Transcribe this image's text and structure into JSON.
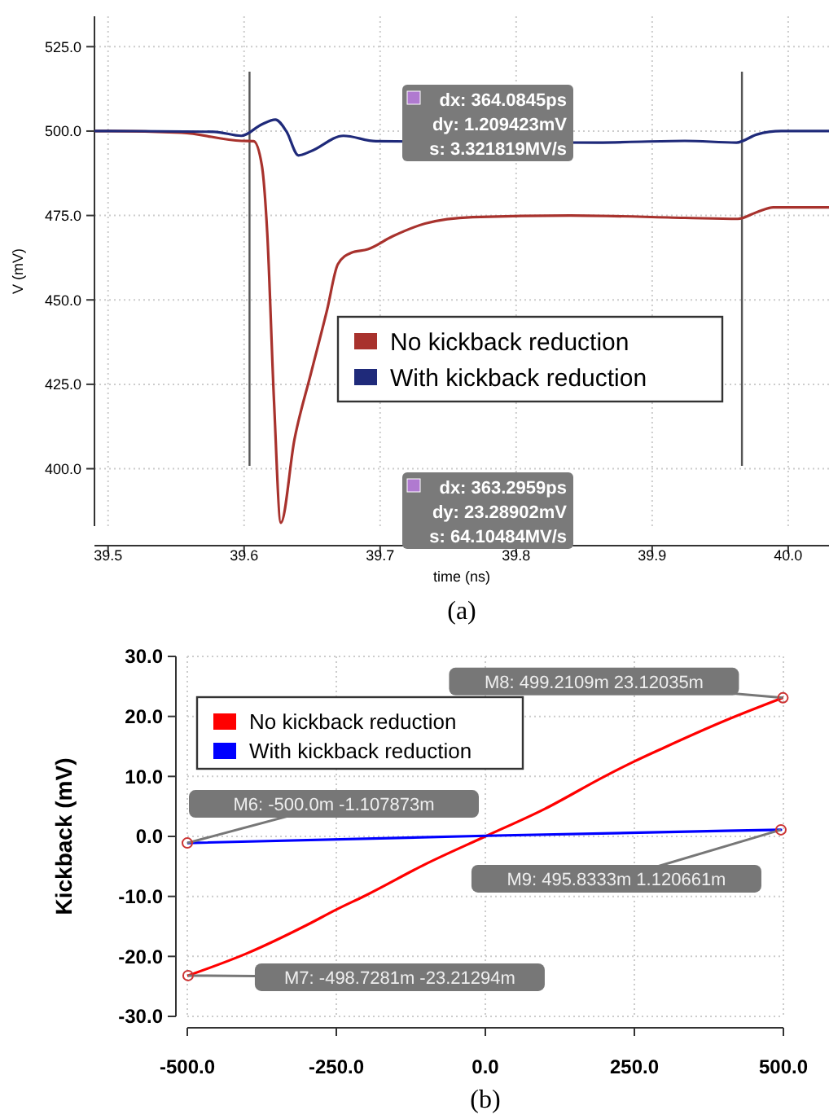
{
  "chart_data": [
    {
      "type": "line",
      "xlabel": "time (ns)",
      "ylabel": "V (mV)",
      "xlim": [
        39.49,
        40.03
      ],
      "ylim": [
        383,
        534
      ],
      "xticks": [
        39.5,
        39.6,
        39.7,
        39.8,
        39.9,
        {
          "value": 40,
          "label": "40.0"
        }
      ],
      "yticks": [
        {
          "value": 400,
          "label": "400.0"
        },
        {
          "value": 425,
          "label": "425.0"
        },
        {
          "value": 450,
          "label": "450.0"
        },
        {
          "value": 475,
          "label": "475.0"
        },
        {
          "value": 500,
          "label": "500.0"
        },
        {
          "value": 525,
          "label": "525.0"
        }
      ],
      "grid": true,
      "legend": "center",
      "series": [
        {
          "name": "No kickback reduction",
          "color": "#a8322d",
          "x": [
            39.49,
            39.5,
            39.554,
            39.598,
            39.607,
            39.613,
            39.617,
            39.622,
            39.627,
            39.637,
            39.649,
            39.661,
            39.669,
            39.679,
            39.691,
            39.709,
            39.733,
            39.768,
            39.84,
            39.924,
            39.963,
            39.977,
            39.989,
            40.03
          ],
          "values": [
            500,
            500,
            499.5,
            497.1,
            497,
            490,
            470,
            420,
            384,
            408.6,
            428,
            447,
            460.6,
            464,
            465,
            468.8,
            472.6,
            474.5,
            475,
            474.3,
            474,
            476,
            477.4,
            477.4
          ]
        },
        {
          "name": "With kickback reduction",
          "color": "#1f2a7a",
          "x": [
            39.49,
            39.5,
            39.578,
            39.598,
            39.613,
            39.623,
            39.631,
            39.64,
            39.649,
            39.673,
            39.697,
            39.86,
            39.924,
            39.962,
            39.977,
            39.995,
            40.03
          ],
          "values": [
            500,
            500,
            499.8,
            498.6,
            502,
            503.4,
            500,
            492.8,
            494,
            498.6,
            497,
            496.6,
            497.1,
            496.6,
            499,
            500,
            500
          ]
        }
      ],
      "ref_lines": [
        {
          "axis": "x",
          "value": 39.604
        },
        {
          "axis": "x",
          "value": 39.966
        }
      ],
      "annotations": [
        "dx: 364.0845ps\ndy: 1.209423mV\ns: 3.321819MV/s",
        "dx: 363.2959ps\ndy: 23.28902mV\ns: 64.10484MV/s",
        "(a)"
      ]
    },
    {
      "type": "line",
      "ylabel": "Kickback (mV)",
      "xlim": [
        -500,
        500
      ],
      "ylim": [
        -30,
        30
      ],
      "xticks": [
        {
          "value": -500,
          "label": "-500.0"
        },
        {
          "value": -250,
          "label": "-250.0"
        },
        {
          "value": 0,
          "label": "0.0"
        },
        {
          "value": 250,
          "label": "250.0"
        },
        {
          "value": 500,
          "label": "500.0"
        }
      ],
      "yticks": [
        {
          "value": -30,
          "label": "-30.0"
        },
        {
          "value": -20,
          "label": "-20.0"
        },
        {
          "value": -10,
          "label": "-10.0"
        },
        {
          "value": 0,
          "label": "0.0"
        },
        {
          "value": 10,
          "label": "10.0"
        },
        {
          "value": 20,
          "label": "20.0"
        },
        {
          "value": 30,
          "label": "30.0"
        }
      ],
      "grid": true,
      "legend": "top left",
      "series": [
        {
          "name": "No kickback reduction",
          "color": "#ff0000",
          "x": [
            -498.7281,
            -400,
            -300,
            -250,
            -200,
            -100,
            0,
            100,
            200,
            250,
            300,
            400,
            499.2109
          ],
          "values": [
            -23.2,
            -19.5,
            -14.8,
            -12.2,
            -9.8,
            -4.6,
            0,
            4.6,
            10,
            12.5,
            14.8,
            19.2,
            23.1
          ]
        },
        {
          "name": "With kickback reduction",
          "color": "#0000ff",
          "x": [
            -500,
            0,
            495.8333
          ],
          "values": [
            -1.1,
            0.1,
            1.1
          ]
        }
      ],
      "annotations": [
        {
          "text": "M8: 499.2109m 23.12035m",
          "x": 499.2109,
          "y": 23.1
        },
        {
          "text": "M6: -500.0m -1.107873m",
          "x": -500,
          "y": -1.1
        },
        {
          "text": "M9: 495.8333m 1.120661m",
          "x": 495.8333,
          "y": 1.1
        },
        {
          "text": "M7: -498.7281m -23.21294m",
          "x": -498.7281,
          "y": -23.2
        },
        "(b)"
      ]
    }
  ]
}
